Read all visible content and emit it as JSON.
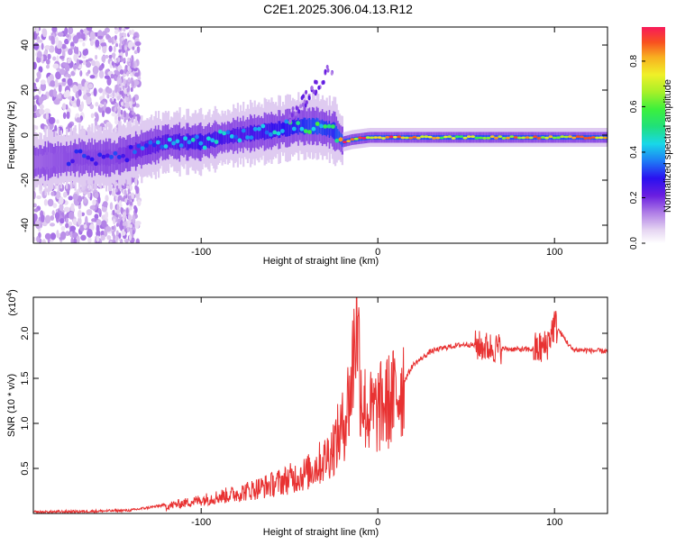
{
  "title": "C2E1.2025.306.04.13.R12",
  "chart_data": [
    {
      "type": "heatmap",
      "xlabel": "Height of straight line (km)",
      "ylabel": "Frequency (Hz)",
      "xlim": [
        -195,
        130
      ],
      "ylim": [
        -48,
        48
      ],
      "xticks": [
        -100,
        0,
        100
      ],
      "yticks": [
        -40,
        -20,
        0,
        20,
        40
      ],
      "colorbar": {
        "label": "Normalized spectral amplitude",
        "range": [
          0,
          0.95
        ],
        "ticks": [
          0.0,
          0.2,
          0.4,
          0.6,
          0.8
        ]
      },
      "ridge": {
        "x": [
          -195,
          -170,
          -150,
          -120,
          -100,
          -80,
          -60,
          -45,
          -35,
          -25,
          -20,
          -15,
          -5,
          10,
          40,
          80,
          130
        ],
        "frequency": [
          -12,
          -10,
          -10,
          -3,
          -3,
          0,
          2,
          4,
          4,
          2,
          -3,
          -2,
          -1,
          -1,
          -1,
          -1,
          -1
        ],
        "amplitude": [
          0.25,
          0.3,
          0.3,
          0.4,
          0.45,
          0.4,
          0.45,
          0.5,
          0.55,
          0.5,
          0.9,
          0.85,
          0.9,
          0.95,
          0.7,
          0.85,
          0.8
        ]
      }
    },
    {
      "type": "line",
      "xlabel": "Height of straight line (km)",
      "ylabel": "SNR (10 * v/v)",
      "y_multiplier": "(x10",
      "y_multiplier_exp": "4",
      "xlim": [
        -195,
        130
      ],
      "ylim": [
        0,
        2.4
      ],
      "xticks": [
        -100,
        0,
        100
      ],
      "yticks": [
        0.5,
        1.0,
        1.5,
        2.0
      ],
      "ytick_labels": [
        "0.5",
        "1.0",
        "1.5",
        "2.0"
      ],
      "series": [
        {
          "name": "SNR",
          "color": "#e83232",
          "x": [
            -195,
            -160,
            -140,
            -120,
            -100,
            -80,
            -60,
            -40,
            -30,
            -25,
            -20,
            -15,
            -12,
            -10,
            -8,
            -5,
            0,
            10,
            20,
            30,
            40,
            50,
            60,
            70,
            80,
            90,
            95,
            100,
            110,
            130
          ],
          "y": [
            0.0,
            0.01,
            0.02,
            0.08,
            0.15,
            0.22,
            0.32,
            0.45,
            0.6,
            0.75,
            0.95,
            1.4,
            2.35,
            1.5,
            1.2,
            1.1,
            1.15,
            1.3,
            1.65,
            1.8,
            1.85,
            1.88,
            1.85,
            1.83,
            1.82,
            1.82,
            1.85,
            2.1,
            1.82,
            1.8
          ]
        }
      ]
    }
  ]
}
